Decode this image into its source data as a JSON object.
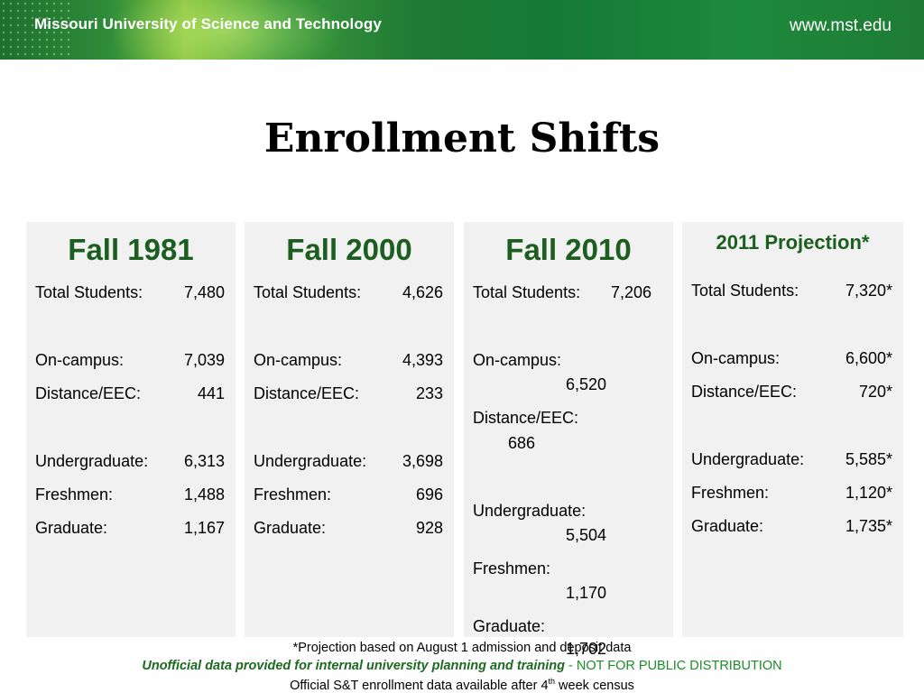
{
  "header": {
    "university": "Missouri University of Science and Technology",
    "url": "www.mst.edu"
  },
  "title": "Enrollment Shifts",
  "panels": {
    "p1981": {
      "heading": "Fall 1981",
      "total_label": "Total Students:",
      "total": "7,480",
      "oncampus_label": "On-campus:",
      "oncampus": "7,039",
      "distance_label": "Distance/EEC:",
      "distance": "441",
      "undergrad_label": "Undergraduate:",
      "undergrad": "6,313",
      "freshmen_label": "Freshmen:",
      "freshmen": "1,488",
      "graduate_label": "Graduate:",
      "graduate": "1,167"
    },
    "p2000": {
      "heading": "Fall 2000",
      "total_label": "Total Students:",
      "total": "4,626",
      "oncampus_label": "On-campus:",
      "oncampus": "4,393",
      "distance_label": "Distance/EEC:",
      "distance": "233",
      "undergrad_label": "Undergraduate:",
      "undergrad": "3,698",
      "freshmen_label": "Freshmen:",
      "freshmen": "696",
      "graduate_label": "Graduate:",
      "graduate": "928"
    },
    "p2010": {
      "heading": "Fall 2010",
      "total_label": "Total Students:",
      "total": "7,206",
      "oncampus_label": "On-campus:",
      "oncampus": "6,520",
      "distance_label": "Distance/EEC:",
      "distance": "686",
      "undergrad_label": "Undergraduate:",
      "undergrad": "5,504",
      "freshmen_label": "Freshmen:",
      "freshmen": "1,170",
      "graduate_label": "Graduate:",
      "graduate": "1,702"
    },
    "p2011": {
      "heading": "2011 Projection*",
      "total_label": "Total Students:",
      "total": "7,320*",
      "oncampus_label": "On-campus:",
      "oncampus": "6,600*",
      "distance_label": "Distance/EEC:",
      "distance": "720*",
      "undergrad_label": "Undergraduate:",
      "undergrad": "5,585*",
      "freshmen_label": "Freshmen:",
      "freshmen": "1,120*",
      "graduate_label": "Graduate:",
      "graduate": "1,735*"
    }
  },
  "footer": {
    "note": "*Projection based on August 1 admission and deposit data",
    "unofficial": "Unofficial data provided for internal university planning and training",
    "not_public": " - NOT FOR PUBLIC DISTRIBUTION",
    "official_pre": "Official S&T enrollment data available  after 4",
    "official_sup": "th",
    "official_post": " week census"
  }
}
